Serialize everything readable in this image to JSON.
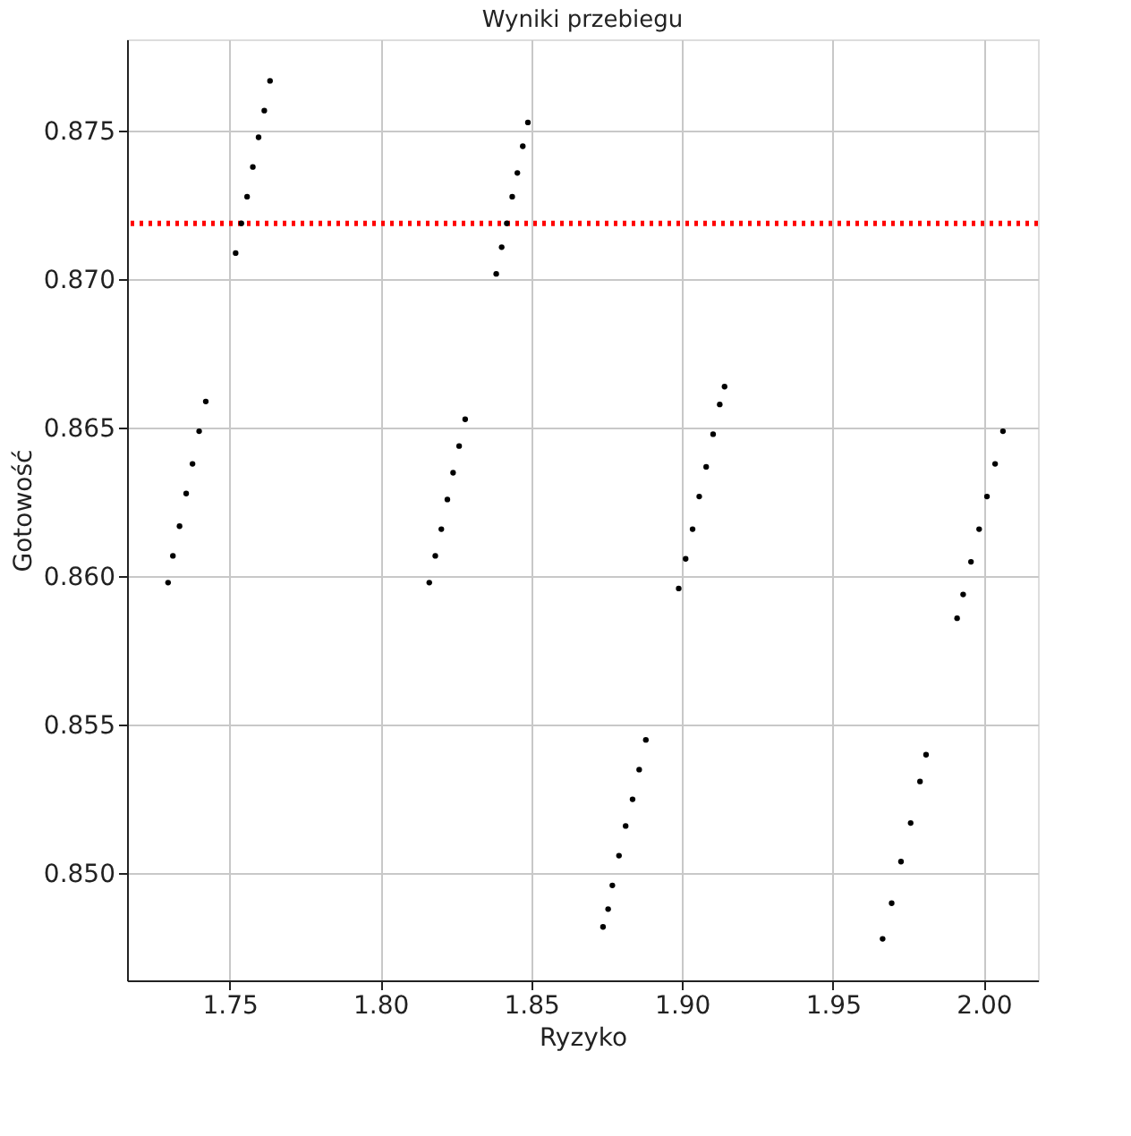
{
  "chart_data": {
    "type": "scatter",
    "title": "Wyniki przebiegu",
    "xlabel": "Ryzyko",
    "ylabel": "Gotowość",
    "xlim": [
      1.716,
      2.018
    ],
    "ylim": [
      0.8464,
      0.8781
    ],
    "xticks": [
      1.75,
      {
        "value": 1.8,
        "label": "1.80"
      },
      1.85,
      {
        "value": 1.9,
        "label": "1.90"
      },
      1.95,
      {
        "value": 2.0,
        "label": "2.00"
      }
    ],
    "yticks": [
      {
        "value": 0.85,
        "label": "0.850"
      },
      0.855,
      {
        "value": 0.86,
        "label": "0.860"
      },
      0.865,
      {
        "value": 0.87,
        "label": "0.870"
      },
      0.875
    ],
    "grid": true,
    "marker": "circle",
    "ref_lines": [
      {
        "axis": "y",
        "value": 0.8719,
        "color": "#ff0000",
        "line_style": "dotted"
      }
    ],
    "series": [
      {
        "color": "#000000",
        "x": [
          1.752,
          1.7539,
          1.7558,
          1.7577,
          1.7596,
          1.7615,
          1.7634,
          1.8384,
          1.8402,
          1.8419,
          1.8437,
          1.8454,
          1.8472,
          1.8489,
          1.7296,
          1.7312,
          1.7334,
          1.7356,
          1.7377,
          1.7399,
          1.7421,
          1.8162,
          1.8182,
          1.8202,
          1.8222,
          1.8241,
          1.8261,
          1.8281,
          1.8989,
          1.9012,
          1.9035,
          1.9057,
          1.908,
          1.9103,
          1.9125,
          1.9141,
          1.9912,
          1.9932,
          1.9958,
          1.9985,
          2.0011,
          2.0038,
          2.0064,
          1.8738,
          1.8755,
          1.8769,
          1.8791,
          1.8813,
          1.8836,
          1.8858,
          1.888,
          1.9665,
          1.9695,
          1.9726,
          1.9758,
          1.9789,
          1.9809
        ],
        "values": [
          0.8709,
          0.8719,
          0.8728,
          0.8738,
          0.8748,
          0.8757,
          0.8767,
          0.8702,
          0.8711,
          0.8719,
          0.8728,
          0.8736,
          0.8745,
          0.8753,
          0.8598,
          0.8607,
          0.8617,
          0.8628,
          0.8638,
          0.8649,
          0.8659,
          0.8598,
          0.8607,
          0.8616,
          0.8626,
          0.8635,
          0.8644,
          0.8653,
          0.8596,
          0.8606,
          0.8616,
          0.8627,
          0.8637,
          0.8648,
          0.8658,
          0.8664,
          0.8586,
          0.8594,
          0.8605,
          0.8616,
          0.8627,
          0.8638,
          0.8649,
          0.8482,
          0.8488,
          0.8496,
          0.8506,
          0.8516,
          0.8525,
          0.8535,
          0.8545,
          0.8478,
          0.849,
          0.8504,
          0.8517,
          0.8531,
          0.854
        ]
      }
    ]
  }
}
